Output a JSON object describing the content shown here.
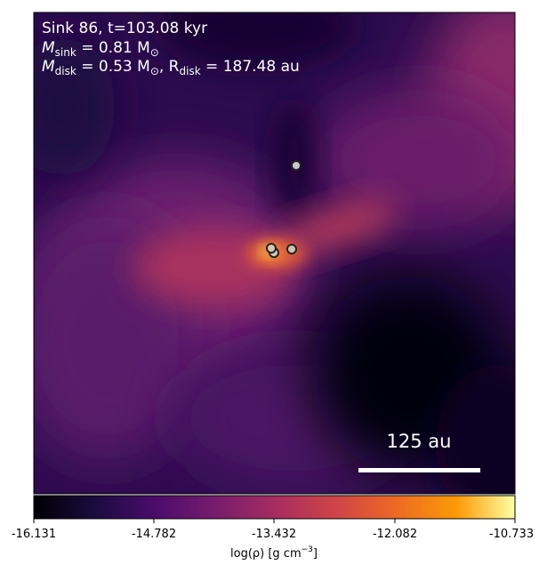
{
  "annotations": {
    "line1": "Sink 86, t=103.08 kyr",
    "line2_prefix": "M",
    "line2_sub": "sink",
    "line2_suffix": " = 0.81 M",
    "line2_sun": "⊙",
    "line3_prefix": "M",
    "line3_sub": "disk",
    "line3_mid": " = 0.53 M",
    "line3_sun": "⊙",
    "line3_r": ", R",
    "line3_rsub": "disk",
    "line3_end": " = 187.48 au"
  },
  "scale_bar": {
    "label": "125 au"
  },
  "colorbar": {
    "label_prefix": "log(ρ) [g cm",
    "label_exp": "−3",
    "label_suffix": "]",
    "ticks": [
      "-16.131",
      "-14.782",
      "-13.432",
      "-12.082",
      "-10.733"
    ],
    "colormap": "inferno/magma"
  },
  "sinks": [
    {
      "fill": "#c8c8c8"
    },
    {
      "fill": "#d4c7b8"
    },
    {
      "fill": "#d7c9b5"
    },
    {
      "fill": "#cfc2b2"
    }
  ],
  "colors": {
    "background_dark": "#2a0b4a",
    "lobe": "#9b3a6a",
    "core": "#f7a34a"
  }
}
